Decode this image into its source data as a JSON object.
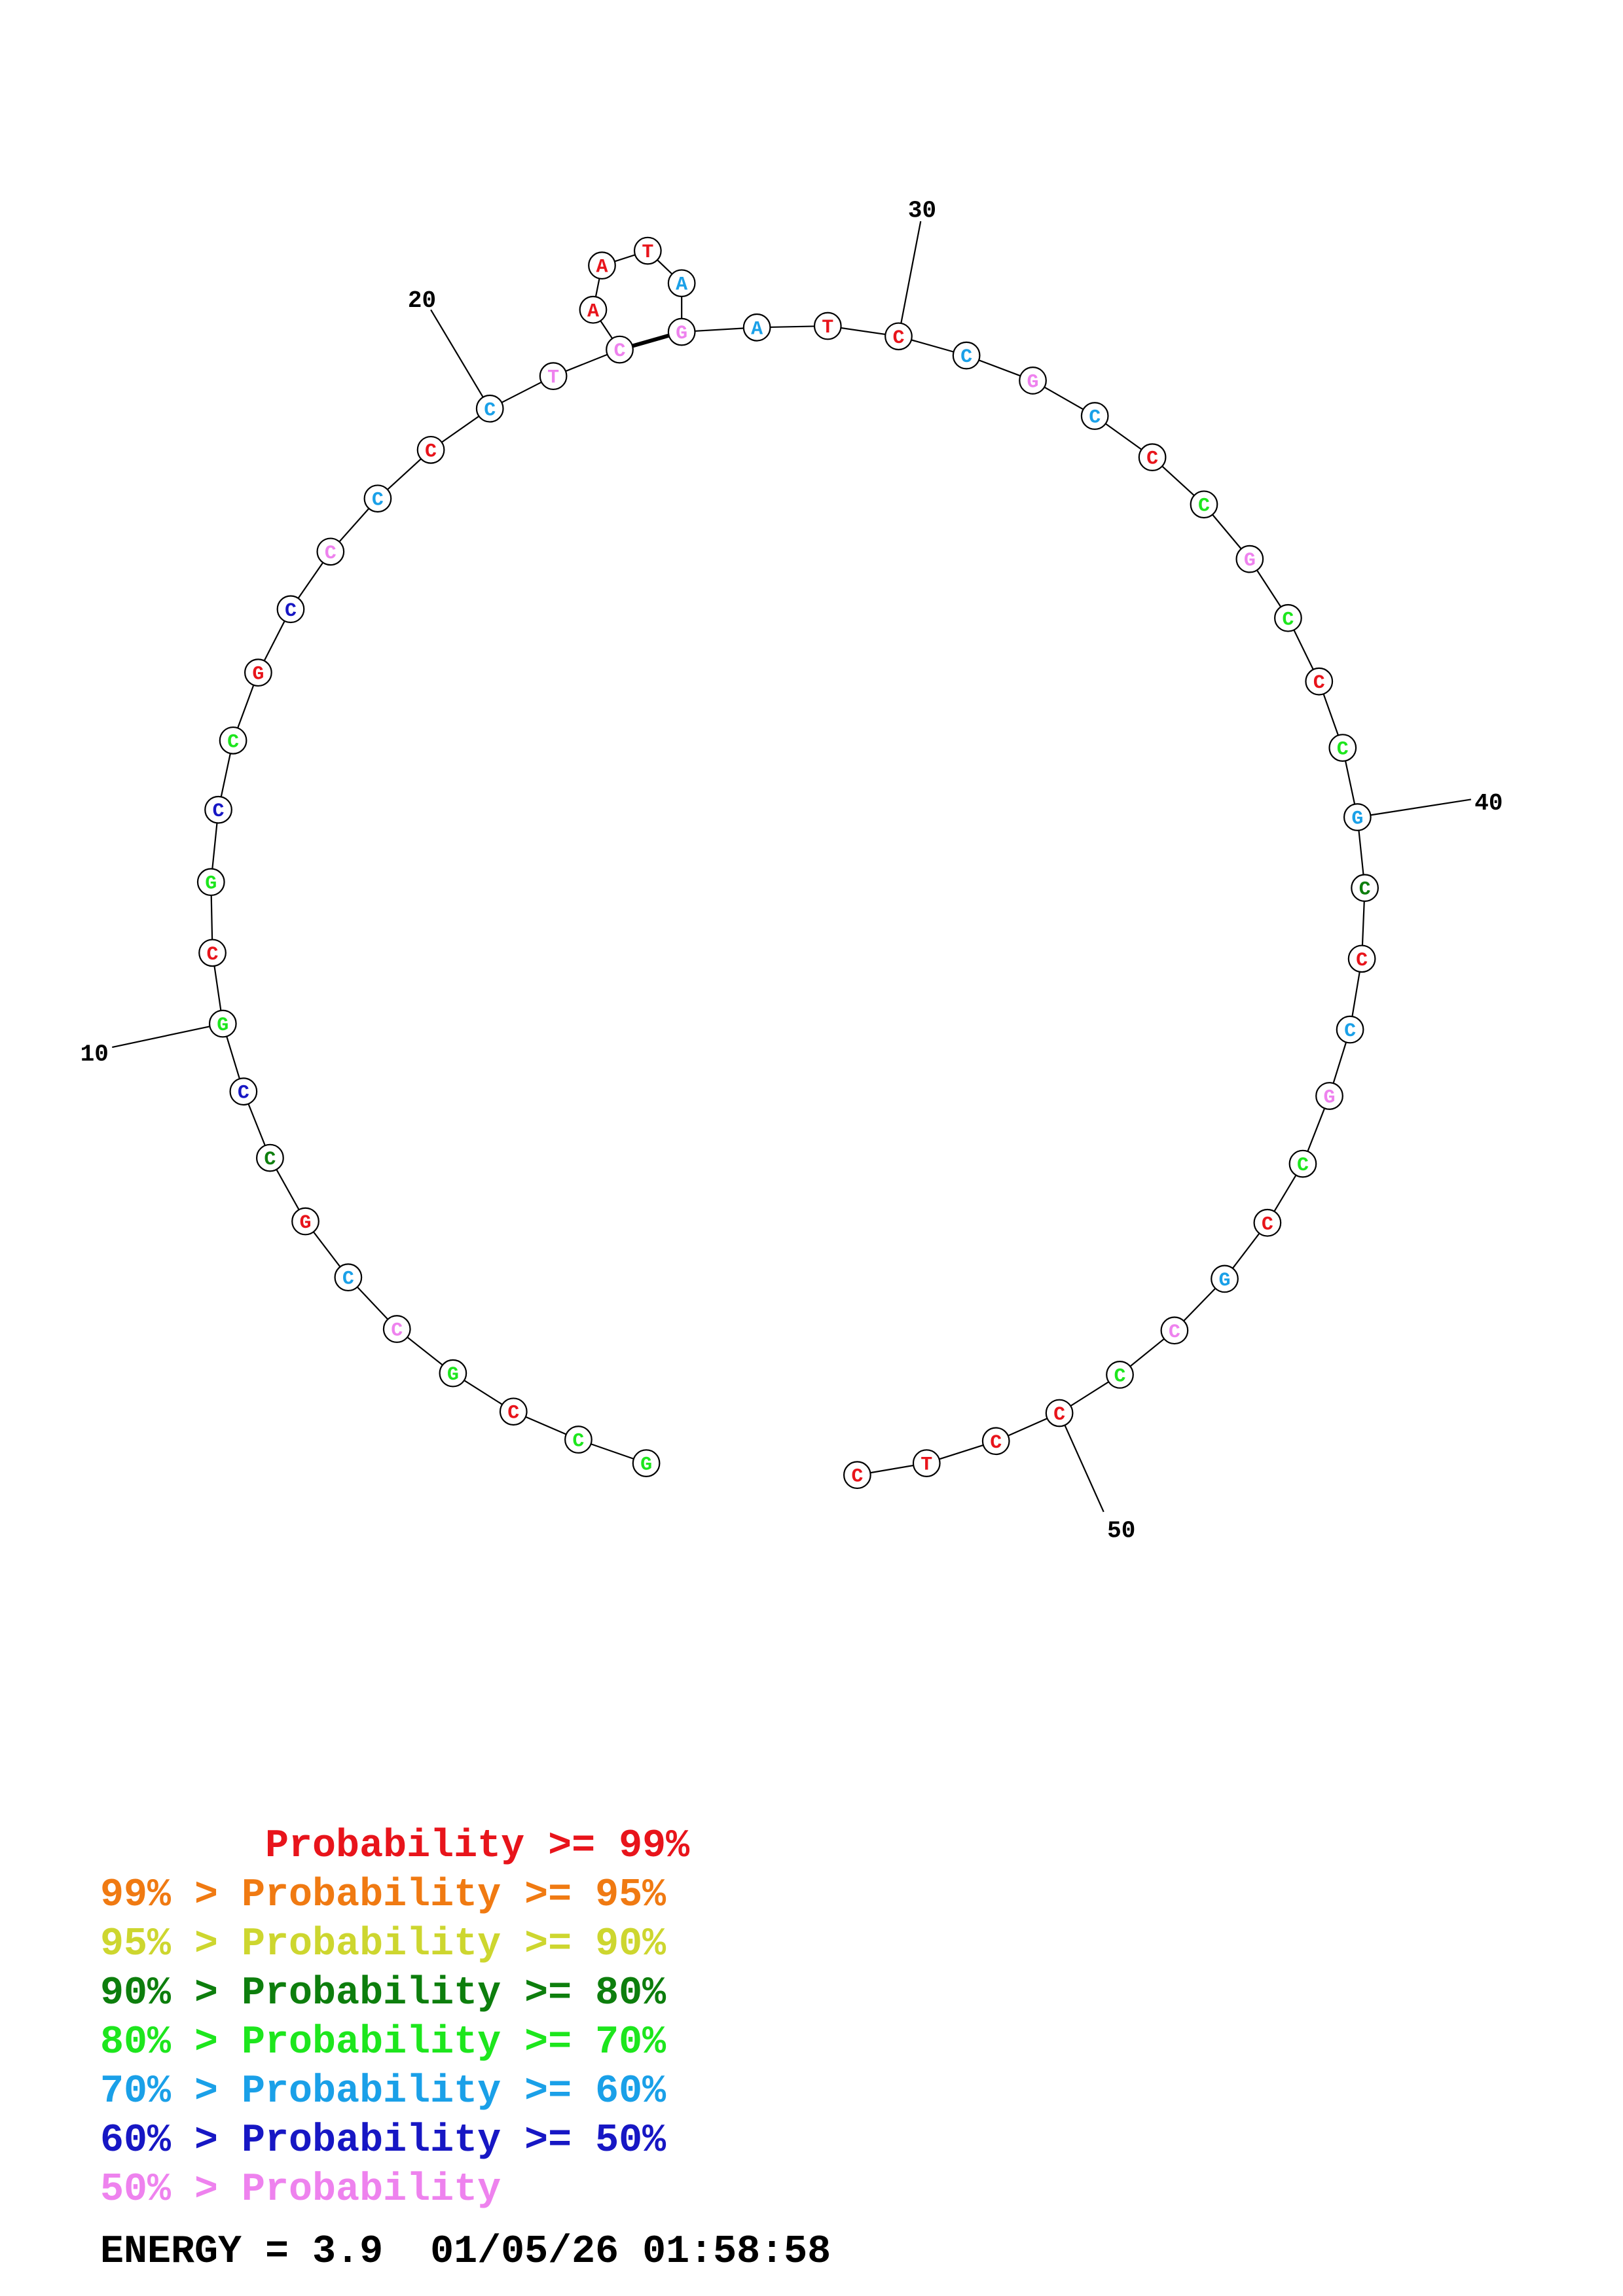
{
  "sequence": [
    "G",
    "C",
    "C",
    "G",
    "C",
    "C",
    "G",
    "C",
    "C",
    "G",
    "C",
    "G",
    "C",
    "C",
    "G",
    "C",
    "C",
    "C",
    "C",
    "C",
    "T",
    "C",
    "A",
    "A",
    "T",
    "A",
    "G",
    "A",
    "T",
    "C",
    "C",
    "G",
    "C",
    "C",
    "C",
    "G",
    "C",
    "C",
    "C",
    "G",
    "C",
    "C",
    "C",
    "G",
    "C",
    "C",
    "G",
    "C",
    "C",
    "C",
    "C",
    "T",
    "C"
  ],
  "nucleotide_colors": [
    "green",
    "green",
    "red",
    "green",
    "pink",
    "sky",
    "red",
    "darkgreen",
    "blue",
    "green",
    "red",
    "green",
    "blue",
    "green",
    "red",
    "blue",
    "pink",
    "sky",
    "red",
    "sky",
    "pink",
    "pink",
    "red",
    "red",
    "red",
    "sky",
    "pink",
    "sky",
    "red",
    "red",
    "sky",
    "pink",
    "sky",
    "red",
    "green",
    "pink",
    "green",
    "red",
    "green",
    "sky",
    "darkgreen",
    "red",
    "sky",
    "pink",
    "green",
    "red",
    "sky",
    "pink",
    "green",
    "red",
    "red",
    "red",
    "red"
  ],
  "palette": {
    "red": "#e8141b",
    "orange": "#f07a12",
    "yellow": "#cdd62f",
    "darkgreen": "#0d7e0d",
    "green": "#1de61d",
    "sky": "#1aa0e8",
    "blue": "#1717c4",
    "pink": "#ee82ee"
  },
  "base_pairs": [
    [
      22,
      27
    ]
  ],
  "ticks": [
    "10",
    "20",
    "30",
    "40",
    "50"
  ],
  "legend": [
    {
      "text": "       Probability >= 99%",
      "color": "#e8141b"
    },
    {
      "text": "99% > Probability >= 95%",
      "color": "#f07a12"
    },
    {
      "text": "95% > Probability >= 90%",
      "color": "#cdd62f"
    },
    {
      "text": "90% > Probability >= 80%",
      "color": "#0d7e0d"
    },
    {
      "text": "80% > Probability >= 70%",
      "color": "#1de61d"
    },
    {
      "text": "70% > Probability >= 60%",
      "color": "#1aa0e8"
    },
    {
      "text": "60% > Probability >= 50%",
      "color": "#1717c4"
    },
    {
      "text": "50% > Probability",
      "color": "#ee82ee"
    }
  ],
  "footer": "ENERGY = 3.9  01/05/26 01:58:58"
}
